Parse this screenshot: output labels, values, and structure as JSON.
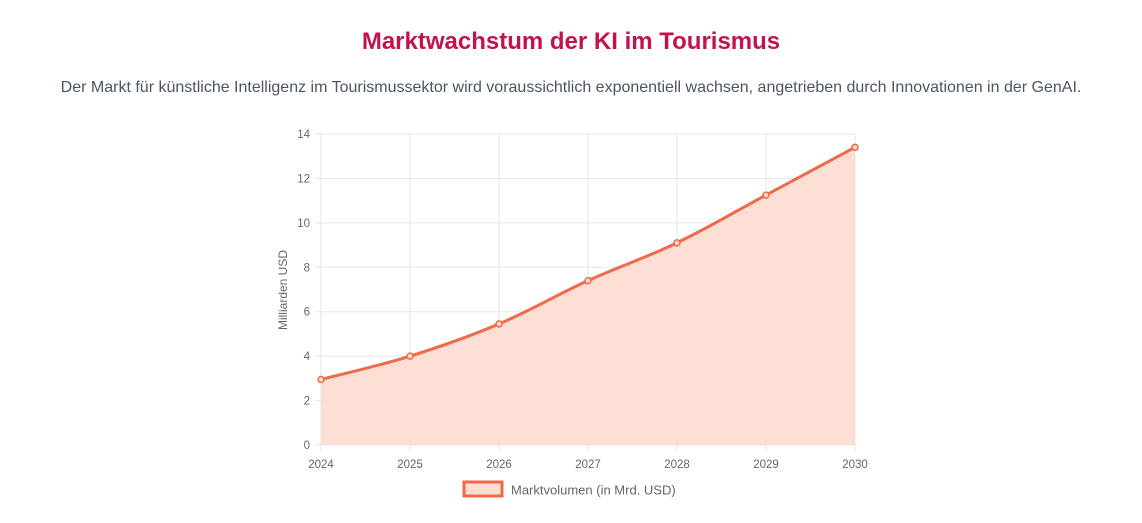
{
  "header": {
    "title": "Marktwachstum der KI im Tourismus",
    "subtitle": "Der Markt für künstliche Intelligenz im Tourismussektor wird voraussichtlich exponentiell wachsen, angetrieben durch Innovationen in der GenAI."
  },
  "chart_data": {
    "type": "line",
    "title": "",
    "xlabel": "",
    "ylabel": "Milliarden USD",
    "categories": [
      "2024",
      "2025",
      "2026",
      "2027",
      "2028",
      "2029",
      "2030"
    ],
    "series": [
      {
        "name": "Marktvolumen (in Mrd. USD)",
        "values": [
          2.95,
          4.0,
          5.45,
          7.4,
          9.1,
          11.25,
          13.4
        ],
        "color": "#ee6a4a",
        "fill": "#fddcd3"
      }
    ],
    "ylim": [
      0,
      14
    ],
    "yticks": [
      0,
      2,
      4,
      6,
      8,
      10,
      12,
      14
    ],
    "grid": true,
    "filled": true,
    "legend": "bottom"
  }
}
